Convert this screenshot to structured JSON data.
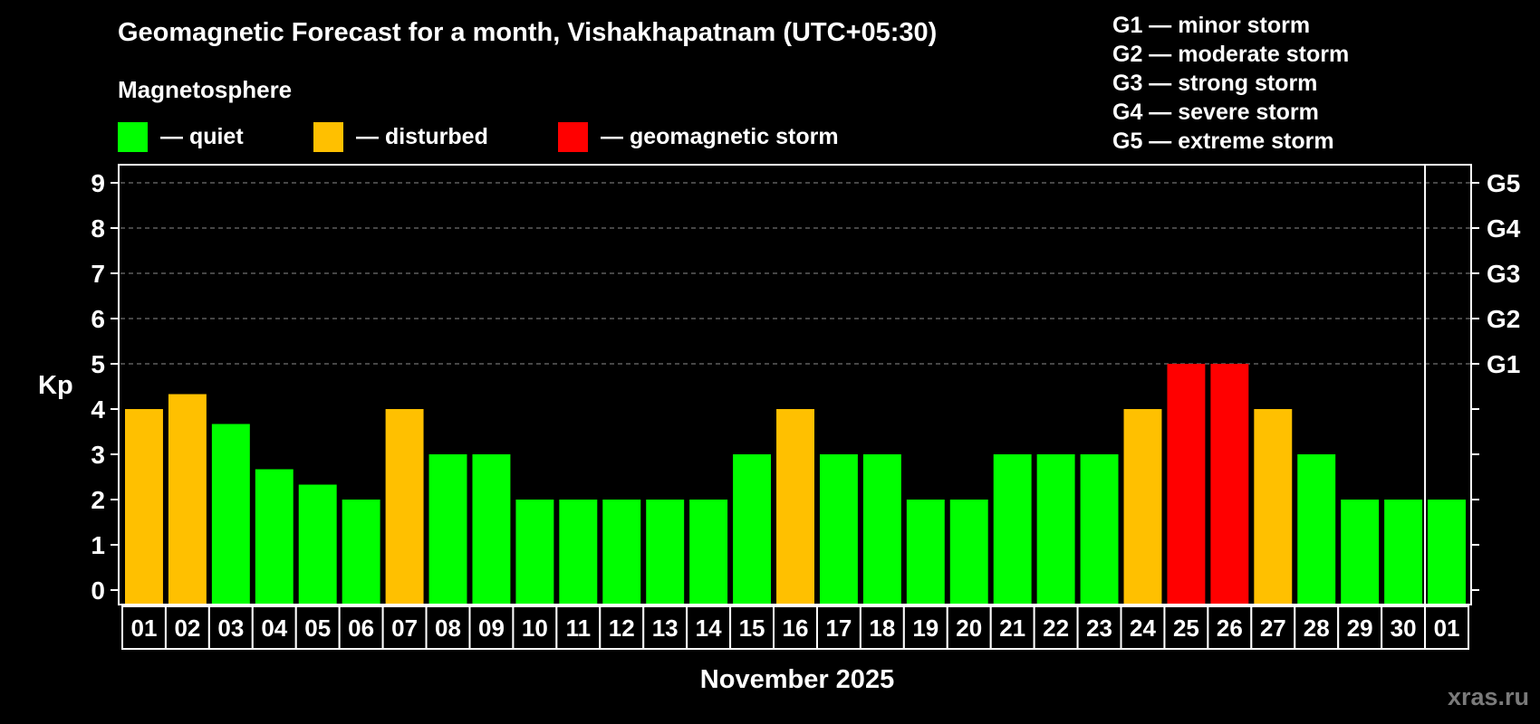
{
  "header": {
    "title": "Geomagnetic Forecast for a month, Vishakhapatnam (UTC+05:30)",
    "subtitle": "Magnetosphere"
  },
  "legend": {
    "items": [
      {
        "label": "— quiet",
        "color": "#00ff00",
        "x": 130
      },
      {
        "label": "— disturbed",
        "color": "#ffc000",
        "x": 346
      },
      {
        "label": "— geomagnetic storm",
        "color": "#ff0000",
        "x": 616
      }
    ]
  },
  "storm_scale": {
    "items": [
      {
        "label": "G1 — minor storm"
      },
      {
        "label": "G2 — moderate storm"
      },
      {
        "label": "G3 — strong storm"
      },
      {
        "label": "G4 — severe storm"
      },
      {
        "label": "G5 — extreme storm"
      }
    ]
  },
  "axes": {
    "ylabel": "Kp",
    "xlabel": "November 2025",
    "y_ticks": [
      "0",
      "1",
      "2",
      "3",
      "4",
      "5",
      "6",
      "7",
      "8",
      "9"
    ],
    "right_ticks": [
      {
        "value": 5,
        "label": "G1"
      },
      {
        "value": 6,
        "label": "G2"
      },
      {
        "value": 7,
        "label": "G3"
      },
      {
        "value": 8,
        "label": "G4"
      },
      {
        "value": 9,
        "label": "G5"
      }
    ]
  },
  "watermark": "xras.ru",
  "colors": {
    "quiet": "#00ff00",
    "disturbed": "#ffc000",
    "storm": "#ff0000",
    "background": "#000000",
    "grid": "#8c8c8c",
    "frame": "#ffffff"
  },
  "chart_data": {
    "type": "bar",
    "title": "Geomagnetic Forecast for a month, Vishakhapatnam (UTC+05:30)",
    "subtitle": "Magnetosphere",
    "xlabel": "November 2025",
    "ylabel": "Kp",
    "ylim": [
      0,
      9
    ],
    "grid": "horizontal dashed at 5,6,7,8,9",
    "legend_position": "top",
    "categories": [
      "01",
      "02",
      "03",
      "04",
      "05",
      "06",
      "07",
      "08",
      "09",
      "10",
      "11",
      "12",
      "13",
      "14",
      "15",
      "16",
      "17",
      "18",
      "19",
      "20",
      "21",
      "22",
      "23",
      "24",
      "25",
      "26",
      "27",
      "28",
      "29",
      "30",
      "01"
    ],
    "values": [
      4,
      4.33,
      3.67,
      2.67,
      2.33,
      2,
      4,
      3,
      3,
      2,
      2,
      2,
      2,
      2,
      3,
      4,
      3,
      3,
      2,
      2,
      3,
      3,
      3,
      4,
      5,
      5,
      4,
      3,
      2,
      2,
      2
    ],
    "status": [
      "disturbed",
      "disturbed",
      "quiet",
      "quiet",
      "quiet",
      "quiet",
      "disturbed",
      "quiet",
      "quiet",
      "quiet",
      "quiet",
      "quiet",
      "quiet",
      "quiet",
      "quiet",
      "disturbed",
      "quiet",
      "quiet",
      "quiet",
      "quiet",
      "quiet",
      "quiet",
      "quiet",
      "disturbed",
      "storm",
      "storm",
      "disturbed",
      "quiet",
      "quiet",
      "quiet",
      "quiet"
    ],
    "legend": [
      "quiet",
      "disturbed",
      "geomagnetic storm"
    ],
    "right_axis_labels": {
      "5": "G1",
      "6": "G2",
      "7": "G3",
      "8": "G4",
      "9": "G5"
    },
    "month_divider_after_index": 29
  }
}
